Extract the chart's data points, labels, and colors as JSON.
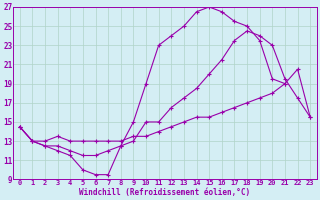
{
  "title": "",
  "xlabel": "Windchill (Refroidissement éolien,°C)",
  "ylabel": "",
  "xlim": [
    -0.5,
    23.5
  ],
  "ylim": [
    9,
    27
  ],
  "yticks": [
    9,
    11,
    13,
    15,
    17,
    19,
    21,
    23,
    25,
    27
  ],
  "xticks": [
    0,
    1,
    2,
    3,
    4,
    5,
    6,
    7,
    8,
    9,
    10,
    11,
    12,
    13,
    14,
    15,
    16,
    17,
    18,
    19,
    20,
    21,
    22,
    23
  ],
  "background_color": "#d4eef4",
  "grid_color": "#b0d4c8",
  "line_color": "#9900aa",
  "line1_x": [
    0,
    1,
    2,
    3,
    4,
    5,
    6,
    7,
    8,
    9,
    10,
    11,
    12,
    13,
    14,
    15,
    16,
    17,
    18,
    19,
    20,
    21
  ],
  "line1_y": [
    14.5,
    13.0,
    12.5,
    12.0,
    11.5,
    10.0,
    9.5,
    9.5,
    12.5,
    15.0,
    19.0,
    23.0,
    24.0,
    25.0,
    26.5,
    27.0,
    26.5,
    25.5,
    25.0,
    23.5,
    19.5,
    19.0
  ],
  "line2_x": [
    0,
    1,
    2,
    3,
    4,
    5,
    6,
    7,
    8,
    9,
    10,
    11,
    12,
    13,
    14,
    15,
    16,
    17,
    18,
    19,
    20,
    21,
    22,
    23
  ],
  "line2_y": [
    14.5,
    13.0,
    12.5,
    12.5,
    12.0,
    11.5,
    11.5,
    12.0,
    12.5,
    13.0,
    15.0,
    15.0,
    16.5,
    17.5,
    18.5,
    20.0,
    21.5,
    23.5,
    24.5,
    24.0,
    23.0,
    19.5,
    17.5,
    15.5
  ],
  "line3_x": [
    0,
    1,
    2,
    3,
    4,
    5,
    6,
    7,
    8,
    9,
    10,
    11,
    12,
    13,
    14,
    15,
    16,
    17,
    18,
    19,
    20,
    21,
    22,
    23
  ],
  "line3_y": [
    14.5,
    13.0,
    13.0,
    13.5,
    13.0,
    13.0,
    13.0,
    13.0,
    13.0,
    13.5,
    13.5,
    14.0,
    14.5,
    15.0,
    15.5,
    15.5,
    16.0,
    16.5,
    17.0,
    17.5,
    18.0,
    19.0,
    20.5,
    15.5
  ]
}
